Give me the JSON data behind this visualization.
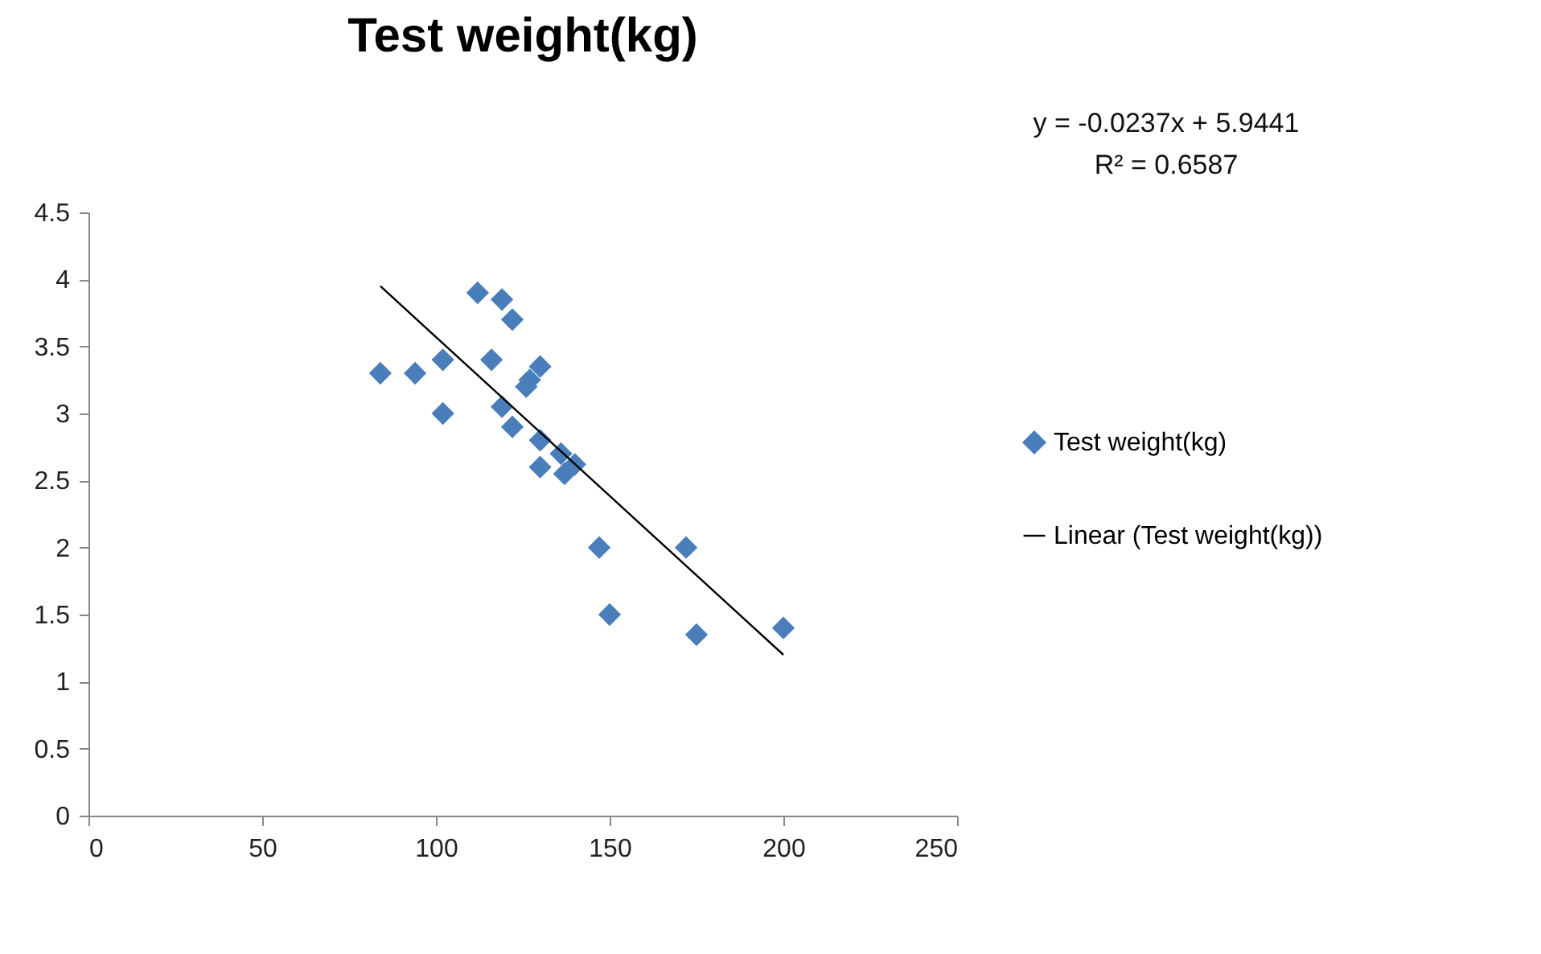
{
  "chart_data": {
    "type": "scatter",
    "title": "Test weight(kg)",
    "annotations": [
      "y = -0.0237x + 5.9441",
      "R² = 0.6587"
    ],
    "x": [
      84,
      94,
      102,
      102,
      112,
      119,
      122,
      116,
      119,
      122,
      126,
      127,
      130,
      130,
      130,
      136,
      137,
      140,
      147,
      150,
      172,
      175,
      200
    ],
    "series": [
      {
        "name": "Test weight(kg)",
        "marker": "diamond",
        "color": "#4a7ebb",
        "values": [
          3.3,
          3.3,
          3.4,
          3.0,
          3.9,
          3.85,
          3.7,
          3.4,
          3.05,
          2.9,
          3.2,
          3.25,
          3.35,
          2.8,
          2.6,
          2.7,
          2.55,
          2.62,
          2.0,
          1.5,
          2.0,
          1.35,
          1.4
        ]
      },
      {
        "name": "Linear (Test weight(kg))",
        "type": "line",
        "color": "#000000",
        "x": [
          84,
          200
        ],
        "values": [
          3.95,
          1.2
        ]
      }
    ],
    "xlim": [
      0,
      250
    ],
    "xticks": [
      0,
      50,
      100,
      150,
      200,
      250
    ],
    "ylim": [
      0,
      4.5
    ],
    "yticks": [
      0,
      0.5,
      1,
      1.5,
      2,
      2.5,
      3,
      3.5,
      4,
      4.5
    ],
    "grid": false,
    "legend": "right"
  }
}
